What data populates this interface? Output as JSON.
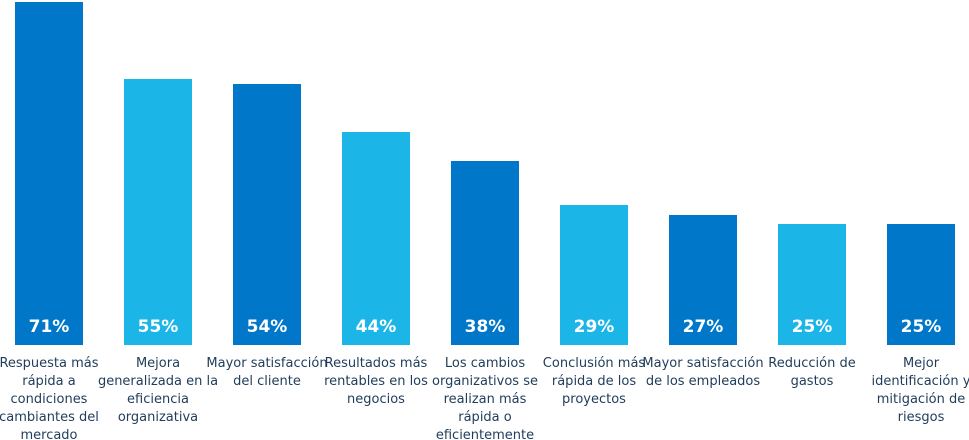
{
  "chart_data": {
    "type": "bar",
    "categories": [
      "Respuesta más rápida a condiciones cambiantes del mercado",
      "Mejora generalizada en la eficiencia organizativa",
      "Mayor satisfacción del cliente",
      "Resultados más rentables en los negocios",
      "Los cambios organizativos se realizan más rápida o eficientemente",
      "Conclusión más rápida de los proyectos",
      "Mayor satisfacción de los empleados",
      "Reducción de gastos",
      "Mejor identificación y mitigación de riesgos"
    ],
    "values": [
      71,
      55,
      54,
      44,
      38,
      29,
      27,
      25,
      25
    ],
    "value_labels": [
      "71%",
      "55%",
      "54%",
      "44%",
      "38%",
      "29%",
      "27%",
      "25%",
      "25%"
    ],
    "colors": [
      "#0077c8",
      "#1bb5e8",
      "#0077c8",
      "#1bb5e8",
      "#0077c8",
      "#1bb5e8",
      "#0077c8",
      "#1bb5e8",
      "#0077c8"
    ]
  }
}
